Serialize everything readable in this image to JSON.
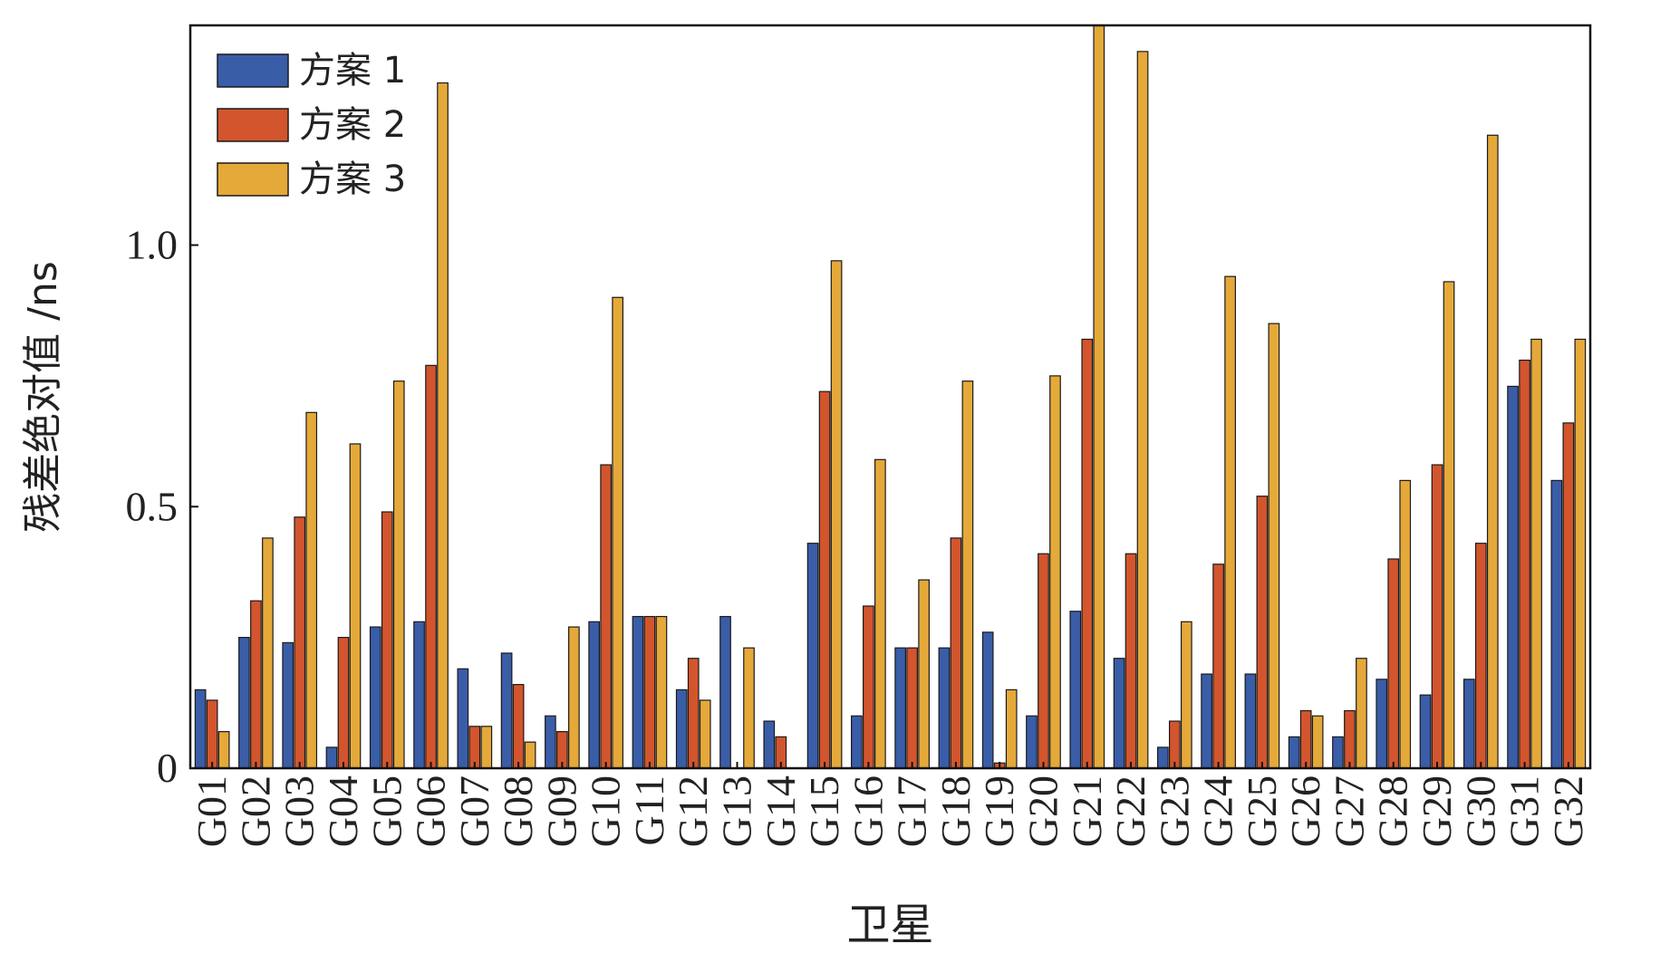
{
  "chart_data": {
    "type": "bar",
    "title": "",
    "xlabel": "卫星",
    "ylabel": "残差绝对值 /ns",
    "ylim": [
      0,
      1.42
    ],
    "yticks": [
      {
        "value": 0,
        "label": "0"
      },
      {
        "value": 0.5,
        "label": "0.5"
      },
      {
        "value": 1.0,
        "label": "1.0"
      }
    ],
    "grid": false,
    "legend_position": "top-left",
    "categories": [
      "G01",
      "G02",
      "G03",
      "G04",
      "G05",
      "G06",
      "G07",
      "G08",
      "G09",
      "G10",
      "G11",
      "G12",
      "G13",
      "G14",
      "G15",
      "G16",
      "G17",
      "G18",
      "G19",
      "G20",
      "G21",
      "G22",
      "G23",
      "G24",
      "G25",
      "G26",
      "G27",
      "G28",
      "G29",
      "G30",
      "G31",
      "G32"
    ],
    "series": [
      {
        "name": "方案 1",
        "color": "#3a5da8",
        "values": [
          0.15,
          0.25,
          0.24,
          0.04,
          0.27,
          0.28,
          0.19,
          0.22,
          0.1,
          0.28,
          0.29,
          0.15,
          0.29,
          0.09,
          0.43,
          0.1,
          0.23,
          0.23,
          0.26,
          0.1,
          0.3,
          0.21,
          0.04,
          0.18,
          0.18,
          0.06,
          0.06,
          0.17,
          0.14,
          0.17,
          0.73,
          0.55
        ]
      },
      {
        "name": "方案 2",
        "color": "#d2552d",
        "values": [
          0.13,
          0.32,
          0.48,
          0.25,
          0.49,
          0.77,
          0.08,
          0.16,
          0.07,
          0.58,
          0.29,
          0.21,
          0.0,
          0.06,
          0.72,
          0.31,
          0.23,
          0.44,
          0.01,
          0.41,
          0.82,
          0.41,
          0.09,
          0.39,
          0.52,
          0.11,
          0.11,
          0.4,
          0.58,
          0.43,
          0.78,
          0.66
        ]
      },
      {
        "name": "方案 3",
        "color": "#e5a93a",
        "values": [
          0.07,
          0.44,
          0.68,
          0.62,
          0.74,
          1.31,
          0.08,
          0.05,
          0.27,
          0.9,
          0.29,
          0.13,
          0.23,
          0.0,
          0.97,
          0.59,
          0.36,
          0.74,
          0.15,
          0.75,
          1.42,
          1.37,
          0.28,
          0.94,
          0.85,
          0.1,
          0.21,
          0.55,
          0.93,
          1.21,
          0.82,
          0.82
        ]
      }
    ]
  }
}
